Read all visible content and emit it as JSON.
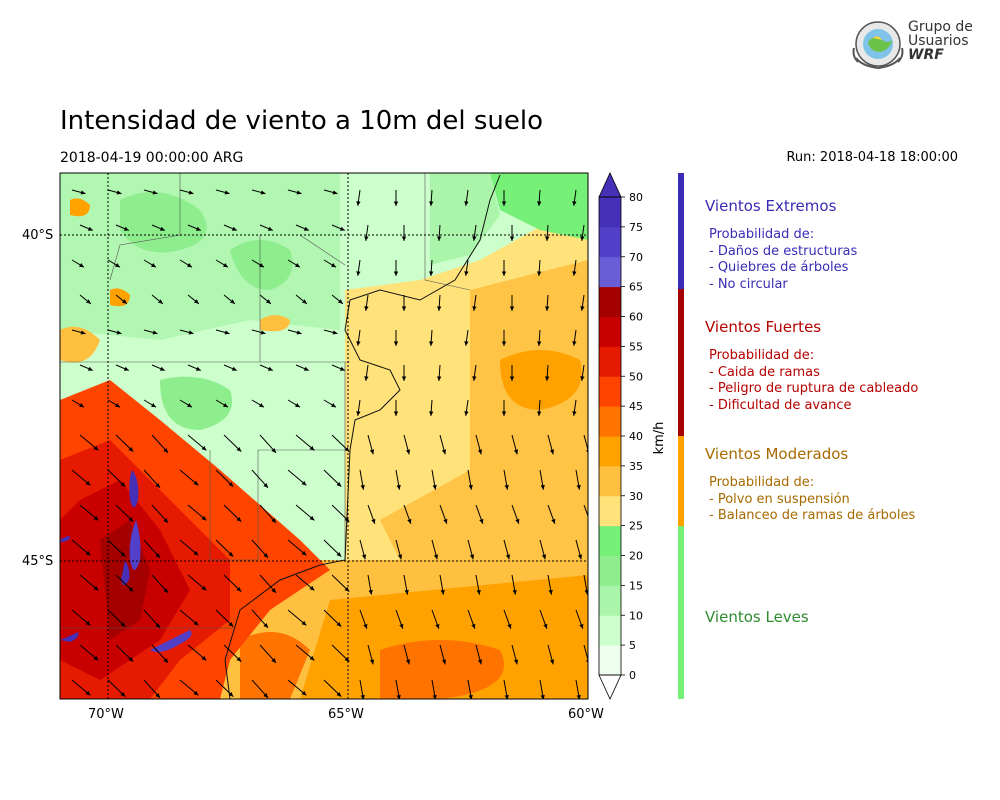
{
  "title": "Intensidad de viento a 10m del suelo",
  "subtitle": "2018-04-19 00:00:00 ARG",
  "run_label": "Run: 2018-04-18 18:00:00",
  "logo": {
    "line1": "Grupo de",
    "line2": "Usuarios",
    "line3": "WRF"
  },
  "map": {
    "lat_labels": [
      "40°S",
      "45°S"
    ],
    "lon_labels": [
      "70°W",
      "65°W",
      "60°W"
    ]
  },
  "colorbar": {
    "unit": "km/h",
    "ticks": [
      "0",
      "5",
      "10",
      "15",
      "20",
      "25",
      "30",
      "35",
      "40",
      "45",
      "50",
      "55",
      "60",
      "65",
      "70",
      "75",
      "80"
    ],
    "colors": [
      "#eeffee",
      "#ccffcc",
      "#aaf5aa",
      "#8eee8e",
      "#77f077",
      "#ffe27a",
      "#ffc040",
      "#ffa200",
      "#ff7300",
      "#ff4400",
      "#e61a00",
      "#c80000",
      "#a50000",
      "#6a5ed6",
      "#5240c8",
      "#4630b8"
    ]
  },
  "categories": [
    {
      "key": "extreme",
      "title": "Vientos Extremos",
      "intro": "Probabilidad de:",
      "items": [
        "- Daños de estructuras",
        "- Quiebres de árboles",
        "- No circular"
      ],
      "color": "#3a2bb5"
    },
    {
      "key": "strong",
      "title": "Vientos Fuertes",
      "intro": "Probabilidad de:",
      "items": [
        "- Caida de ramas",
        "- Peligro de ruptura de cableado",
        "- Dificultad de avance"
      ],
      "color": "#b50000"
    },
    {
      "key": "moderate",
      "title": "Vientos Moderados",
      "intro": "Probabilidad de:",
      "items": [
        "- Polvo en suspensión",
        "- Balanceo de ramas de árboles"
      ],
      "color": "#ffa200"
    },
    {
      "key": "light",
      "title": "Vientos Leves",
      "color": "#77f077"
    }
  ]
}
